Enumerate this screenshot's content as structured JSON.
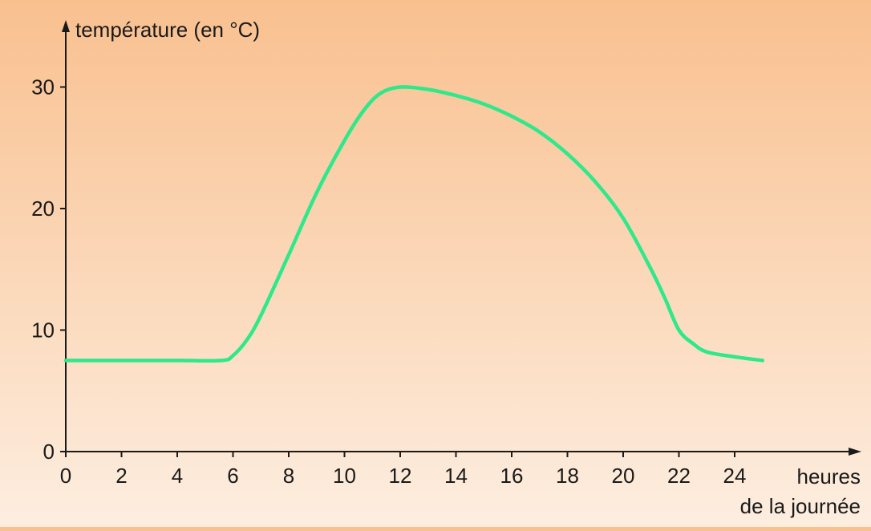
{
  "chart_data": {
    "type": "line",
    "title": "",
    "ylabel": "température (en °C)",
    "xlabel_lines": [
      "heures",
      "de la journée"
    ],
    "xlim": [
      0,
      25.5
    ],
    "ylim": [
      0,
      33
    ],
    "x_ticks": [
      0,
      2,
      4,
      6,
      8,
      10,
      12,
      14,
      16,
      18,
      20,
      22,
      24
    ],
    "y_ticks": [
      0,
      10,
      20,
      30
    ],
    "grid": false,
    "series": [
      {
        "color": "#2ee88a",
        "x": [
          0,
          2,
          4,
          5.6,
          6,
          6.5,
          7,
          8,
          9,
          10,
          10.7,
          11.3,
          12,
          13,
          14,
          15,
          16,
          17,
          18,
          19,
          20,
          21,
          21.5,
          22,
          22.5,
          23,
          24,
          25
        ],
        "y": [
          7.5,
          7.5,
          7.5,
          7.5,
          7.9,
          9.2,
          11.2,
          16.2,
          21.3,
          25.6,
          28.1,
          29.5,
          30.0,
          29.8,
          29.3,
          28.6,
          27.6,
          26.3,
          24.5,
          22.2,
          19.2,
          15.0,
          12.6,
          10.0,
          8.9,
          8.2,
          7.8,
          7.5
        ]
      }
    ],
    "axis_color": "#1a1a1a"
  }
}
